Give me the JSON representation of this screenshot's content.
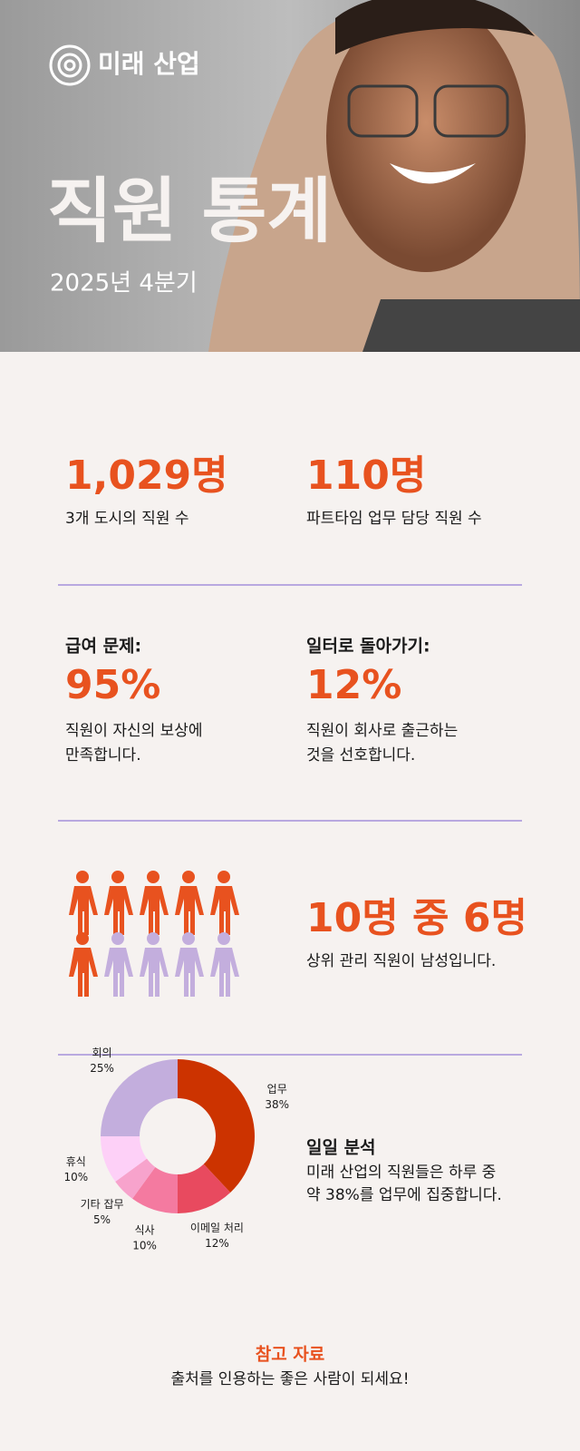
{
  "header": {
    "logo": "미래 산업",
    "title": "직원 통계",
    "subtitle": "2025년 4분기"
  },
  "stats": [
    {
      "value": "1,029명",
      "label": "3개 도시의 직원 수"
    },
    {
      "value": "110명",
      "label": "파트타임 업무 담당 직원 수"
    },
    {
      "heading": "급여 문제:",
      "value": "95%",
      "label": [
        "직원이 자신의 보상에",
        "만족합니다."
      ]
    },
    {
      "heading": "일터로 돌아가기:",
      "value": "12%",
      "label": [
        "직원이 회사로 출근하는",
        "것을 선호합니다."
      ]
    }
  ],
  "pictogram": {
    "total": 10,
    "highlighted": 6,
    "highlight_color": "#e8521f",
    "other_color": "#c3aedd",
    "value": "10명 중 6명",
    "label": "상위 관리 직원이 남성입니다."
  },
  "daily_chart": {
    "type": "pie",
    "heading": "일일 분석",
    "text": [
      "미래 산업의 직원들은 하루 중",
      "약 38%를 업무에 집중합니다."
    ],
    "categories": [
      "업무",
      "이메일 처리",
      "식사",
      "기타 잡무",
      "휴식",
      "회의"
    ],
    "values": [
      38,
      12,
      10,
      5,
      10,
      25
    ],
    "value_labels": [
      "38%",
      "12%",
      "10%",
      "5%",
      "10%",
      "25%"
    ],
    "colors": [
      "#cc3300",
      "#e84a5f",
      "#f47aa0",
      "#f7a3cc",
      "#fdd0f7",
      "#c3aedd"
    ]
  },
  "footer": {
    "title": "참고 자료",
    "text": "출처를 인용하는 좋은 사람이 되세요!"
  }
}
